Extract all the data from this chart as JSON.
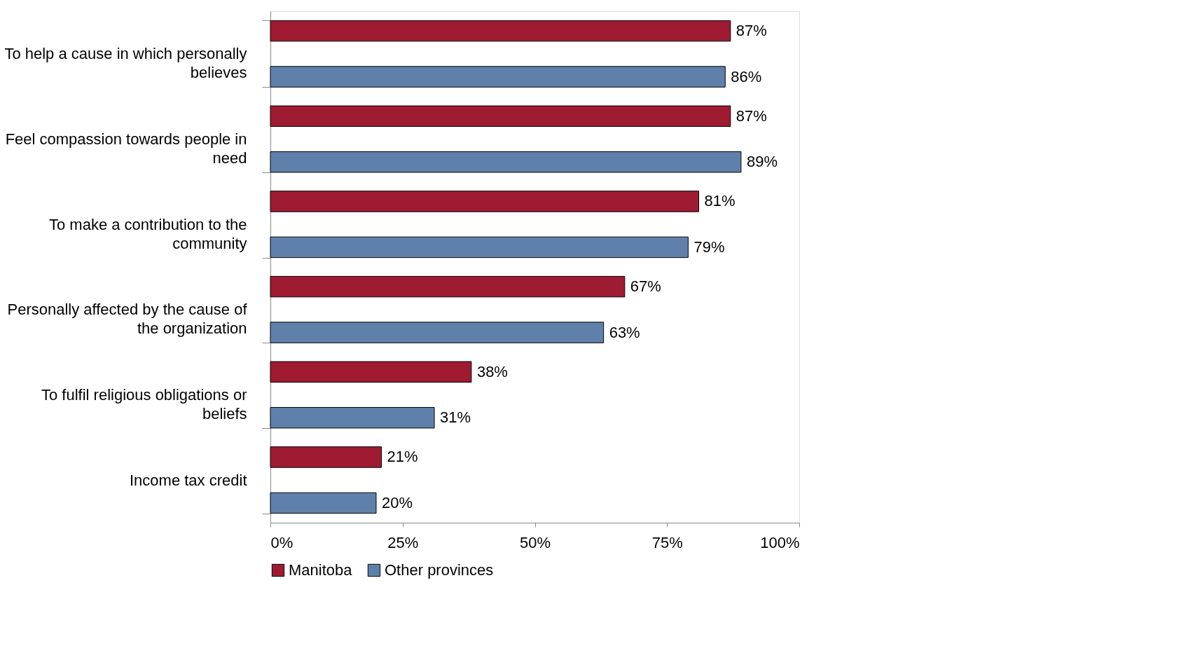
{
  "chart_data": {
    "type": "bar",
    "orientation": "horizontal",
    "categories": [
      "To help a cause in which personally believes",
      "Feel compassion towards people in need",
      "To make a contribution to the community",
      "Personally affected by the cause of the organization",
      "To fulfil religious obligations or beliefs",
      "Income tax credit"
    ],
    "series": [
      {
        "name": "Manitoba",
        "color": "#9e1b32",
        "values": [
          87,
          87,
          81,
          67,
          38,
          21
        ],
        "value_labels": [
          "87%",
          "87%",
          "81%",
          "67%",
          "38%",
          "21%"
        ]
      },
      {
        "name": "Other provinces",
        "color": "#5f80aa",
        "values": [
          86,
          89,
          79,
          63,
          31,
          20
        ],
        "value_labels": [
          "86%",
          "89%",
          "79%",
          "63%",
          "31%",
          "20%"
        ]
      }
    ],
    "xlim": [
      0,
      100
    ],
    "xticks": [
      {
        "value": 0,
        "label": "0%"
      },
      {
        "value": 25,
        "label": "25%"
      },
      {
        "value": 50,
        "label": "50%"
      },
      {
        "value": 75,
        "label": "75%"
      },
      {
        "value": 100,
        "label": "100%"
      }
    ],
    "grid": false,
    "legend": "bottom"
  }
}
